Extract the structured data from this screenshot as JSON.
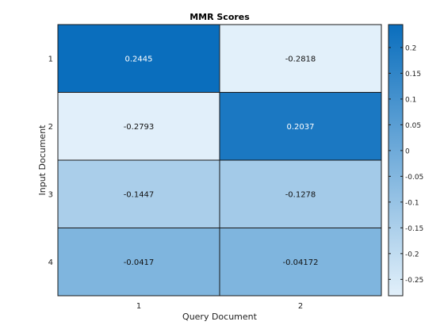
{
  "chart_data": {
    "type": "heatmap",
    "title": "MMR Scores",
    "xlabel": "Query Document",
    "ylabel": "Input Document",
    "x_categories": [
      "1",
      "2"
    ],
    "y_categories": [
      "1",
      "2",
      "3",
      "4"
    ],
    "values": [
      [
        0.2445,
        -0.2818
      ],
      [
        -0.2793,
        0.2037
      ],
      [
        -0.1447,
        -0.1278
      ],
      [
        -0.0417,
        -0.04172
      ]
    ],
    "value_labels": [
      [
        "0.2445",
        "-0.2818"
      ],
      [
        "-0.2793",
        "0.2037"
      ],
      [
        "-0.1447",
        "-0.1278"
      ],
      [
        "-0.0417",
        "-0.04172"
      ]
    ],
    "colorbar": {
      "range": [
        -0.2818,
        0.2445
      ],
      "ticks": [
        0.2,
        0.15,
        0.1,
        0.05,
        0,
        -0.05,
        -0.1,
        -0.15,
        -0.2,
        -0.25
      ],
      "tick_labels": [
        "0.2",
        "0.15",
        "0.1",
        "0.05",
        "0",
        "-0.05",
        "-0.1",
        "-0.15",
        "-0.2",
        "-0.25"
      ],
      "color_low": "#e2f0fa",
      "color_high": "#0a6ebd"
    },
    "grid": false
  }
}
